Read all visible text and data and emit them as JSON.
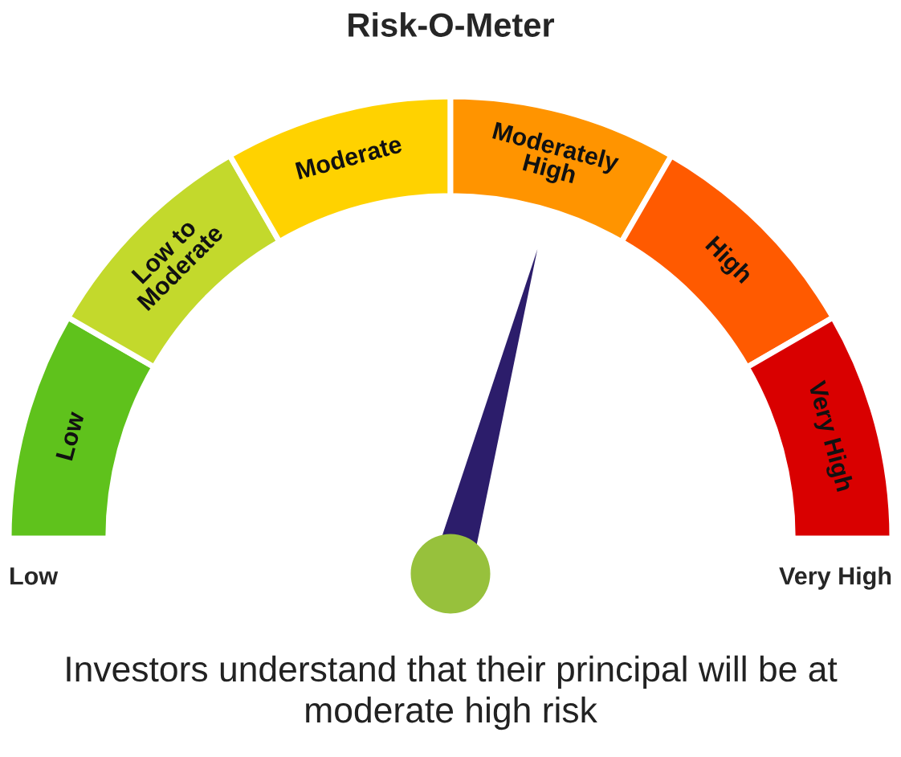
{
  "chart_data": {
    "type": "donut",
    "title": "Risk-O-Meter",
    "categories": [
      "Low",
      "Low to\nModerate",
      "Moderate",
      "Moderately\nHigh",
      "High",
      "Very High"
    ],
    "values": [
      16.67,
      16.67,
      16.66,
      16.67,
      16.67,
      16.66
    ],
    "colors": [
      "#5fc21c",
      "#c3d92c",
      "#ffd200",
      "#ff9400",
      "#ff5a00",
      "#d90000"
    ],
    "needle": "Moderately\nHigh",
    "annotations": [
      "Low",
      "Very High",
      "Investors understand that their principal will be at moderate high risk"
    ]
  }
}
